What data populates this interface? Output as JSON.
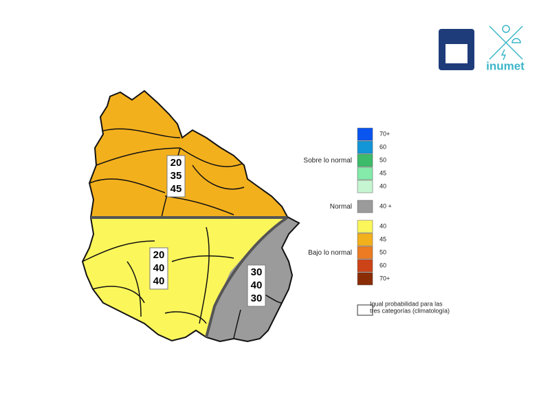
{
  "logo": {
    "text": "inumet"
  },
  "map": {
    "regions": [
      {
        "probabilities": [
          20,
          35,
          45
        ],
        "color": "#f3b01d"
      },
      {
        "probabilities": [
          20,
          40,
          40
        ],
        "color": "#fbf65a"
      },
      {
        "probabilities": [
          30,
          40,
          30
        ],
        "color": "#9b9b9b"
      }
    ]
  },
  "legend": {
    "groups": [
      {
        "label": "Sobre lo normal",
        "items": [
          {
            "label": "70+",
            "color": "#0a55f0"
          },
          {
            "label": "60",
            "color": "#1296d8"
          },
          {
            "label": "50",
            "color": "#3cbb6a"
          },
          {
            "label": "45",
            "color": "#84ebaa"
          },
          {
            "label": "40",
            "color": "#c6f5d2"
          }
        ]
      },
      {
        "label": "Normal",
        "items": [
          {
            "label": "40 +",
            "color": "#9b9b9b"
          }
        ]
      },
      {
        "label": "Bajo lo normal",
        "items": [
          {
            "label": "40",
            "color": "#fbf65a"
          },
          {
            "label": "45",
            "color": "#f3b01d"
          },
          {
            "label": "50",
            "color": "#ec7b22"
          },
          {
            "label": "60",
            "color": "#cd4318"
          },
          {
            "label": "70+",
            "color": "#8a2c06"
          }
        ]
      }
    ],
    "note": [
      "Igual probabilidad para las",
      "tres categorías (climatología)"
    ]
  }
}
